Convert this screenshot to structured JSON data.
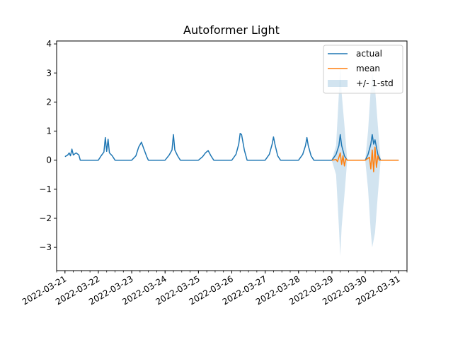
{
  "chart_data": {
    "type": "line",
    "title": "Autoformer Light",
    "xlabel": "",
    "ylabel": "",
    "xlim": [
      "2022-03-20 18:00",
      "2022-03-31 06:00"
    ],
    "ylim": [
      -3.8,
      4.1
    ],
    "yticks": [
      4,
      3,
      2,
      1,
      0,
      -1,
      -2,
      -3
    ],
    "ytick_labels": [
      "4",
      "3",
      "2",
      "1",
      "0",
      "−1",
      "−2",
      "−3"
    ],
    "xticks": [
      "2022-03-21",
      "2022-03-22",
      "2022-03-23",
      "2022-03-24",
      "2022-03-25",
      "2022-03-26",
      "2022-03-27",
      "2022-03-28",
      "2022-03-29",
      "2022-03-30",
      "2022-03-31"
    ],
    "grid": false,
    "legend_position": "top-right",
    "series": [
      {
        "name": "actual",
        "color": "#1f77b4",
        "points": [
          [
            "2022-03-21 00:00",
            0.12
          ],
          [
            "2022-03-21 02:00",
            0.18
          ],
          [
            "2022-03-21 03:00",
            0.25
          ],
          [
            "2022-03-21 04:00",
            0.15
          ],
          [
            "2022-03-21 05:00",
            0.38
          ],
          [
            "2022-03-21 06:00",
            0.18
          ],
          [
            "2022-03-21 08:00",
            0.25
          ],
          [
            "2022-03-21 10:00",
            0.18
          ],
          [
            "2022-03-21 11:00",
            0.0
          ],
          [
            "2022-03-22 00:00",
            0.0
          ],
          [
            "2022-03-22 02:00",
            0.15
          ],
          [
            "2022-03-22 04:00",
            0.28
          ],
          [
            "2022-03-22 05:00",
            0.78
          ],
          [
            "2022-03-22 06:00",
            0.3
          ],
          [
            "2022-03-22 07:00",
            0.72
          ],
          [
            "2022-03-22 08:00",
            0.25
          ],
          [
            "2022-03-22 10:00",
            0.15
          ],
          [
            "2022-03-22 12:00",
            0.0
          ],
          [
            "2022-03-23 00:00",
            0.0
          ],
          [
            "2022-03-23 03:00",
            0.15
          ],
          [
            "2022-03-23 05:00",
            0.45
          ],
          [
            "2022-03-23 07:00",
            0.62
          ],
          [
            "2022-03-23 09:00",
            0.35
          ],
          [
            "2022-03-23 11:00",
            0.1
          ],
          [
            "2022-03-23 12:00",
            0.0
          ],
          [
            "2022-03-24 00:00",
            0.0
          ],
          [
            "2022-03-24 03:00",
            0.18
          ],
          [
            "2022-03-24 05:00",
            0.35
          ],
          [
            "2022-03-24 06:00",
            0.88
          ],
          [
            "2022-03-24 07:00",
            0.35
          ],
          [
            "2022-03-24 09:00",
            0.15
          ],
          [
            "2022-03-24 11:00",
            0.0
          ],
          [
            "2022-03-25 00:00",
            0.0
          ],
          [
            "2022-03-25 03:00",
            0.12
          ],
          [
            "2022-03-25 05:00",
            0.25
          ],
          [
            "2022-03-25 07:00",
            0.33
          ],
          [
            "2022-03-25 09:00",
            0.15
          ],
          [
            "2022-03-25 11:00",
            0.0
          ],
          [
            "2022-03-26 00:00",
            0.0
          ],
          [
            "2022-03-26 03:00",
            0.2
          ],
          [
            "2022-03-26 05:00",
            0.55
          ],
          [
            "2022-03-26 06:00",
            0.92
          ],
          [
            "2022-03-26 07:00",
            0.88
          ],
          [
            "2022-03-26 09:00",
            0.35
          ],
          [
            "2022-03-26 11:00",
            0.0
          ],
          [
            "2022-03-27 00:00",
            0.0
          ],
          [
            "2022-03-27 03:00",
            0.2
          ],
          [
            "2022-03-27 05:00",
            0.55
          ],
          [
            "2022-03-27 06:00",
            0.8
          ],
          [
            "2022-03-27 07:00",
            0.55
          ],
          [
            "2022-03-27 09:00",
            0.15
          ],
          [
            "2022-03-27 11:00",
            0.0
          ],
          [
            "2022-03-28 00:00",
            0.0
          ],
          [
            "2022-03-28 03:00",
            0.2
          ],
          [
            "2022-03-28 05:00",
            0.5
          ],
          [
            "2022-03-28 06:00",
            0.78
          ],
          [
            "2022-03-28 07:00",
            0.5
          ],
          [
            "2022-03-28 09:00",
            0.15
          ],
          [
            "2022-03-28 11:00",
            0.0
          ],
          [
            "2022-03-29 00:00",
            0.0
          ],
          [
            "2022-03-29 03:00",
            0.2
          ],
          [
            "2022-03-29 05:00",
            0.5
          ],
          [
            "2022-03-29 06:00",
            0.88
          ],
          [
            "2022-03-29 07:00",
            0.5
          ],
          [
            "2022-03-29 09:00",
            0.15
          ],
          [
            "2022-03-29 11:00",
            0.0
          ],
          [
            "2022-03-30 00:00",
            0.0
          ],
          [
            "2022-03-30 02:00",
            0.2
          ],
          [
            "2022-03-30 04:00",
            0.55
          ],
          [
            "2022-03-30 05:00",
            0.88
          ],
          [
            "2022-03-30 06:00",
            0.55
          ],
          [
            "2022-03-30 07:00",
            0.7
          ],
          [
            "2022-03-30 09:00",
            0.2
          ],
          [
            "2022-03-30 11:00",
            0.0
          ],
          [
            "2022-03-31 00:00",
            0.0
          ]
        ]
      },
      {
        "name": "mean",
        "color": "#ff7f0e",
        "points": [
          [
            "2022-03-29 00:00",
            0.0
          ],
          [
            "2022-03-29 03:00",
            0.02
          ],
          [
            "2022-03-29 04:00",
            -0.05
          ],
          [
            "2022-03-29 05:00",
            0.1
          ],
          [
            "2022-03-29 06:00",
            0.25
          ],
          [
            "2022-03-29 07:00",
            -0.15
          ],
          [
            "2022-03-29 08:00",
            0.15
          ],
          [
            "2022-03-29 09:00",
            -0.2
          ],
          [
            "2022-03-29 10:00",
            0.05
          ],
          [
            "2022-03-29 11:00",
            0.0
          ],
          [
            "2022-03-30 00:00",
            0.0
          ],
          [
            "2022-03-30 03:00",
            0.1
          ],
          [
            "2022-03-30 04:00",
            -0.3
          ],
          [
            "2022-03-30 05:00",
            0.35
          ],
          [
            "2022-03-30 06:00",
            -0.4
          ],
          [
            "2022-03-30 07:00",
            0.45
          ],
          [
            "2022-03-30 08:00",
            -0.25
          ],
          [
            "2022-03-30 09:00",
            0.15
          ],
          [
            "2022-03-30 10:00",
            0.0
          ],
          [
            "2022-03-31 00:00",
            0.0
          ]
        ]
      }
    ],
    "band": {
      "name": "+/- 1-std",
      "color": "#1f77b4",
      "opacity": 0.2,
      "points": [
        [
          "2022-03-29 00:00",
          -0.02,
          0.02
        ],
        [
          "2022-03-29 03:00",
          -0.5,
          0.5
        ],
        [
          "2022-03-29 05:00",
          -2.3,
          2.3
        ],
        [
          "2022-03-29 06:00",
          -3.3,
          3.3
        ],
        [
          "2022-03-29 07:00",
          -2.3,
          2.3
        ],
        [
          "2022-03-29 09:00",
          -1.2,
          1.2
        ],
        [
          "2022-03-29 11:00",
          -0.02,
          0.02
        ],
        [
          "2022-03-30 00:00",
          -0.02,
          0.02
        ],
        [
          "2022-03-30 02:00",
          -1.0,
          1.0
        ],
        [
          "2022-03-30 04:00",
          -2.5,
          2.5
        ],
        [
          "2022-03-30 05:00",
          -3.0,
          3.0
        ],
        [
          "2022-03-30 07:00",
          -2.5,
          2.5
        ],
        [
          "2022-03-30 09:00",
          -1.2,
          1.2
        ],
        [
          "2022-03-30 11:00",
          -0.02,
          0.02
        ],
        [
          "2022-03-31 00:00",
          -0.02,
          0.02
        ]
      ]
    }
  }
}
